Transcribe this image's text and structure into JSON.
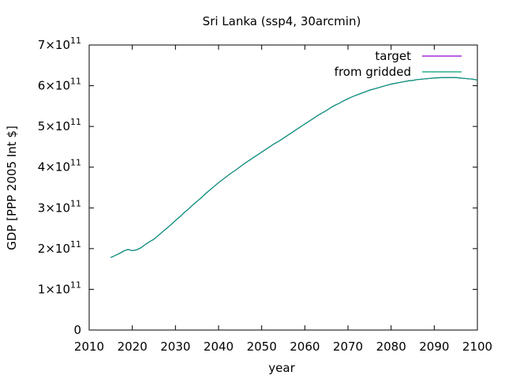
{
  "chart_data": {
    "type": "line",
    "title": "Sri Lanka (ssp4, 30arcmin)",
    "xlabel": "year",
    "ylabel": "GDP [PPP 2005 Int $]",
    "xlim": [
      2010,
      2100
    ],
    "ylim": [
      0,
      700000000000.0
    ],
    "grid": false,
    "legend_position": "top-right",
    "x_ticks": [
      2010,
      2020,
      2030,
      2040,
      2050,
      2060,
      2070,
      2080,
      2090,
      2100
    ],
    "y_ticks": [
      {
        "value": 0,
        "mantissa": "0",
        "exp": ""
      },
      {
        "value": 100000000000.0,
        "mantissa": "1×10",
        "exp": "11"
      },
      {
        "value": 200000000000.0,
        "mantissa": "2×10",
        "exp": "11"
      },
      {
        "value": 300000000000.0,
        "mantissa": "3×10",
        "exp": "11"
      },
      {
        "value": 400000000000.0,
        "mantissa": "4×10",
        "exp": "11"
      },
      {
        "value": 500000000000.0,
        "mantissa": "5×10",
        "exp": "11"
      },
      {
        "value": 600000000000.0,
        "mantissa": "6×10",
        "exp": "11"
      },
      {
        "value": 700000000000.0,
        "mantissa": "7×10",
        "exp": "11"
      }
    ],
    "x": [
      2015,
      2016,
      2017,
      2018,
      2019,
      2020,
      2021,
      2022,
      2023,
      2024,
      2025,
      2026,
      2027,
      2028,
      2029,
      2030,
      2031,
      2032,
      2033,
      2034,
      2035,
      2036,
      2037,
      2038,
      2039,
      2040,
      2041,
      2042,
      2043,
      2044,
      2045,
      2046,
      2047,
      2048,
      2049,
      2050,
      2051,
      2052,
      2053,
      2054,
      2055,
      2056,
      2057,
      2058,
      2059,
      2060,
      2061,
      2062,
      2063,
      2064,
      2065,
      2066,
      2067,
      2068,
      2069,
      2070,
      2071,
      2072,
      2073,
      2074,
      2075,
      2076,
      2077,
      2078,
      2079,
      2080,
      2081,
      2082,
      2083,
      2084,
      2085,
      2086,
      2087,
      2088,
      2089,
      2090,
      2091,
      2092,
      2093,
      2094,
      2095,
      2096,
      2097,
      2098,
      2099,
      2100
    ],
    "series": [
      {
        "name": "target",
        "color": "#9400d3",
        "values": [
          178000000000.0,
          183000000000.0,
          188000000000.0,
          194000000000.0,
          198000000000.0,
          195000000000.0,
          197000000000.0,
          202000000000.0,
          210000000000.0,
          217000000000.0,
          223000000000.0,
          232000000000.0,
          241000000000.0,
          250000000000.0,
          259000000000.0,
          269000000000.0,
          278000000000.0,
          288000000000.0,
          297000000000.0,
          307000000000.0,
          316000000000.0,
          325000000000.0,
          335000000000.0,
          344000000000.0,
          353000000000.0,
          362000000000.0,
          370000000000.0,
          378000000000.0,
          386000000000.0,
          393000000000.0,
          401000000000.0,
          409000000000.0,
          416000000000.0,
          423000000000.0,
          430000000000.0,
          437000000000.0,
          444000000000.0,
          451000000000.0,
          458000000000.0,
          464000000000.0,
          471000000000.0,
          478000000000.0,
          485000000000.0,
          492000000000.0,
          499000000000.0,
          506000000000.0,
          513000000000.0,
          520000000000.0,
          527000000000.0,
          533000000000.0,
          539000000000.0,
          546000000000.0,
          552000000000.0,
          557000000000.0,
          563000000000.0,
          568000000000.0,
          573000000000.0,
          577000000000.0,
          581000000000.0,
          585000000000.0,
          589000000000.0,
          592000000000.0,
          595000000000.0,
          598000000000.0,
          601000000000.0,
          604000000000.0,
          606000000000.0,
          608000000000.0,
          610000000000.0,
          612000000000.0,
          613000000000.0,
          615000000000.0,
          616000000000.0,
          617000000000.0,
          618000000000.0,
          619000000000.0,
          619500000000.0,
          620000000000.0,
          620000000000.0,
          620000000000.0,
          620000000000.0,
          619000000000.0,
          618000000000.0,
          617000000000.0,
          616000000000.0,
          614000000000.0
        ]
      },
      {
        "name": "from gridded",
        "color": "#009e73",
        "values": [
          178000000000.0,
          183000000000.0,
          188000000000.0,
          194000000000.0,
          198000000000.0,
          195000000000.0,
          197000000000.0,
          202000000000.0,
          210000000000.0,
          217000000000.0,
          223000000000.0,
          232000000000.0,
          241000000000.0,
          250000000000.0,
          259000000000.0,
          269000000000.0,
          278000000000.0,
          288000000000.0,
          297000000000.0,
          307000000000.0,
          316000000000.0,
          325000000000.0,
          335000000000.0,
          344000000000.0,
          353000000000.0,
          362000000000.0,
          370000000000.0,
          378000000000.0,
          386000000000.0,
          393000000000.0,
          401000000000.0,
          409000000000.0,
          416000000000.0,
          423000000000.0,
          430000000000.0,
          437000000000.0,
          444000000000.0,
          451000000000.0,
          458000000000.0,
          464000000000.0,
          471000000000.0,
          478000000000.0,
          485000000000.0,
          492000000000.0,
          499000000000.0,
          506000000000.0,
          513000000000.0,
          520000000000.0,
          527000000000.0,
          533000000000.0,
          539000000000.0,
          546000000000.0,
          552000000000.0,
          557000000000.0,
          563000000000.0,
          568000000000.0,
          573000000000.0,
          577000000000.0,
          581000000000.0,
          585000000000.0,
          589000000000.0,
          592000000000.0,
          595000000000.0,
          598000000000.0,
          601000000000.0,
          604000000000.0,
          606000000000.0,
          608000000000.0,
          610000000000.0,
          612000000000.0,
          613000000000.0,
          615000000000.0,
          616000000000.0,
          617000000000.0,
          618000000000.0,
          619000000000.0,
          619500000000.0,
          620000000000.0,
          620000000000.0,
          620000000000.0,
          620000000000.0,
          619000000000.0,
          618000000000.0,
          617000000000.0,
          616000000000.0,
          614000000000.0
        ]
      }
    ]
  }
}
